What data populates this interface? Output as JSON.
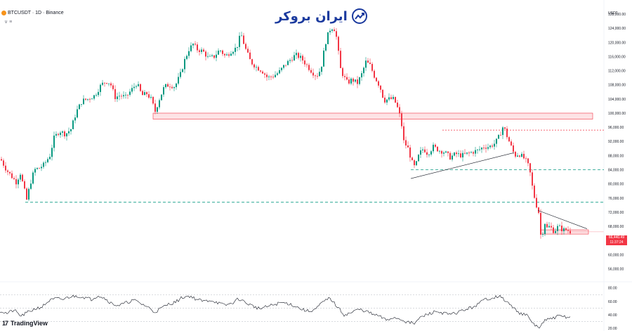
{
  "header": {
    "symbol": "BTCUSDT · 1D · Binance",
    "symbol_icon": "bitcoin-coin-icon",
    "indicator_row": "∨ ≡"
  },
  "logo": {
    "text": "ایران بروکر",
    "icon": "trend-up-chart-icon",
    "color": "#1b3a9e"
  },
  "footer": {
    "brand": "TradingView",
    "brand_icon": "tradingview-logo-icon"
  },
  "price_axis": {
    "unit": "USDT",
    "ticks": [
      "128,000.00",
      "124,000.00",
      "120,000.00",
      "116,000.00",
      "112,000.00",
      "108,000.00",
      "104,000.00",
      "100,000.00",
      "96,000.00",
      "92,000.00",
      "88,000.00",
      "84,000.00",
      "80,000.00",
      "76,000.00",
      "72,000.00",
      "68,000.00",
      "64,000.00",
      "60,000.00",
      "56,000.00"
    ],
    "current_price": "66,440.49",
    "countdown": "11:37:24"
  },
  "rsi_axis": {
    "ticks": [
      "80.00",
      "60.00",
      "40.00",
      "20.00"
    ]
  },
  "colors": {
    "up": "#089981",
    "down": "#f23645",
    "zone": "#f23645",
    "green_line": "#089981",
    "trend": "#131722"
  },
  "chart_data": [
    {
      "type": "candlestick",
      "title": "BTCUSDT · 1D · Binance",
      "ylim": [
        53500,
        130000
      ],
      "y_ticks": [
        128000,
        124000,
        120000,
        116000,
        112000,
        108000,
        104000,
        100000,
        96000,
        92000,
        88000,
        84000,
        80000,
        76000,
        72000,
        68000,
        64000,
        60000,
        56000
      ],
      "close_path": [
        [
          0,
          87000
        ],
        [
          8,
          84000
        ],
        [
          14,
          82500
        ],
        [
          22,
          80500
        ],
        [
          28,
          83000
        ],
        [
          34,
          78000
        ],
        [
          37,
          75500
        ],
        [
          42,
          80000
        ],
        [
          48,
          84000
        ],
        [
          55,
          84500
        ],
        [
          62,
          85500
        ],
        [
          70,
          88000
        ],
        [
          76,
          93000
        ],
        [
          84,
          95000
        ],
        [
          92,
          94000
        ],
        [
          100,
          95500
        ],
        [
          108,
          100500
        ],
        [
          116,
          103500
        ],
        [
          124,
          104000
        ],
        [
          134,
          105000
        ],
        [
          143,
          108000
        ],
        [
          150,
          109000
        ],
        [
          156,
          108500
        ],
        [
          163,
          104500
        ],
        [
          170,
          105000
        ],
        [
          178,
          104500
        ],
        [
          186,
          106500
        ],
        [
          194,
          108500
        ],
        [
          201,
          105000
        ],
        [
          208,
          105500
        ],
        [
          214,
          104000
        ],
        [
          220,
          100500
        ],
        [
          226,
          104000
        ],
        [
          233,
          107500
        ],
        [
          240,
          108000
        ],
        [
          248,
          107500
        ],
        [
          256,
          111000
        ],
        [
          262,
          115000
        ],
        [
          268,
          118000
        ],
        [
          274,
          119500
        ],
        [
          280,
          118000
        ],
        [
          288,
          117500
        ],
        [
          296,
          115500
        ],
        [
          304,
          116000
        ],
        [
          312,
          118000
        ],
        [
          320,
          116000
        ],
        [
          328,
          117500
        ],
        [
          336,
          118500
        ],
        [
          342,
          122500
        ],
        [
          348,
          118500
        ],
        [
          356,
          114500
        ],
        [
          364,
          113000
        ],
        [
          372,
          112000
        ],
        [
          380,
          110000
        ],
        [
          388,
          110500
        ],
        [
          396,
          111500
        ],
        [
          404,
          113500
        ],
        [
          412,
          115000
        ],
        [
          420,
          116500
        ],
        [
          428,
          115500
        ],
        [
          436,
          113500
        ],
        [
          444,
          111500
        ],
        [
          450,
          110500
        ],
        [
          456,
          112500
        ],
        [
          462,
          119500
        ],
        [
          468,
          123500
        ],
        [
          474,
          124500
        ],
        [
          478,
          121500
        ],
        [
          484,
          112500
        ],
        [
          488,
          110500
        ],
        [
          494,
          108500
        ],
        [
          500,
          109500
        ],
        [
          508,
          108500
        ],
        [
          514,
          111000
        ],
        [
          520,
          114500
        ],
        [
          526,
          113500
        ],
        [
          532,
          110500
        ],
        [
          540,
          107500
        ],
        [
          546,
          103500
        ],
        [
          552,
          104000
        ],
        [
          560,
          104000
        ],
        [
          566,
          101000
        ],
        [
          570,
          98000
        ],
        [
          574,
          92000
        ],
        [
          580,
          90000
        ],
        [
          586,
          86000
        ],
        [
          590,
          84500
        ],
        [
          596,
          88500
        ],
        [
          602,
          90000
        ],
        [
          608,
          88500
        ],
        [
          616,
          90500
        ],
        [
          624,
          89500
        ],
        [
          632,
          89000
        ],
        [
          640,
          87500
        ],
        [
          648,
          88500
        ],
        [
          656,
          88000
        ],
        [
          664,
          88500
        ],
        [
          672,
          89000
        ],
        [
          680,
          89500
        ],
        [
          688,
          90500
        ],
        [
          696,
          90500
        ],
        [
          704,
          91500
        ],
        [
          710,
          93500
        ],
        [
          716,
          96500
        ],
        [
          720,
          94000
        ],
        [
          726,
          91000
        ],
        [
          732,
          88000
        ],
        [
          738,
          88500
        ],
        [
          744,
          87500
        ],
        [
          750,
          86000
        ],
        [
          754,
          83000
        ],
        [
          758,
          78000
        ],
        [
          762,
          74500
        ],
        [
          766,
          72000
        ],
        [
          770,
          63500
        ],
        [
          774,
          69500
        ],
        [
          778,
          67500
        ],
        [
          782,
          68000
        ],
        [
          788,
          66500
        ],
        [
          794,
          68000
        ],
        [
          800,
          67000
        ],
        [
          806,
          67000
        ],
        [
          812,
          66440
        ]
      ],
      "horizontal_zones": [
        {
          "from": 100000,
          "to": 98300
        },
        {
          "from": 67000,
          "to": 65800
        }
      ],
      "support_lines": [
        95200,
        84000,
        74800
      ],
      "trendlines": [
        [
          [
            585,
            81500
          ],
          [
            732,
            88800
          ]
        ],
        [
          [
            766,
            72500
          ],
          [
            836,
            67300
          ]
        ]
      ],
      "last_price": 66440.49
    },
    {
      "type": "line",
      "name": "RSI",
      "ylim": [
        18,
        88
      ],
      "y_ticks": [
        80,
        60,
        40,
        20
      ],
      "levels": [
        70,
        50,
        30
      ],
      "values": [
        [
          0,
          46
        ],
        [
          10,
          42
        ],
        [
          20,
          47
        ],
        [
          30,
          38
        ],
        [
          40,
          44
        ],
        [
          50,
          49
        ],
        [
          60,
          52
        ],
        [
          70,
          61
        ],
        [
          80,
          64
        ],
        [
          90,
          63
        ],
        [
          100,
          67
        ],
        [
          110,
          68
        ],
        [
          120,
          66
        ],
        [
          130,
          63
        ],
        [
          140,
          69
        ],
        [
          150,
          64
        ],
        [
          160,
          56
        ],
        [
          170,
          54
        ],
        [
          180,
          58
        ],
        [
          190,
          62
        ],
        [
          200,
          57
        ],
        [
          210,
          52
        ],
        [
          220,
          44
        ],
        [
          230,
          50
        ],
        [
          240,
          56
        ],
        [
          250,
          59
        ],
        [
          260,
          66
        ],
        [
          270,
          68
        ],
        [
          280,
          63
        ],
        [
          290,
          60
        ],
        [
          300,
          62
        ],
        [
          310,
          58
        ],
        [
          320,
          54
        ],
        [
          330,
          57
        ],
        [
          340,
          64
        ],
        [
          350,
          58
        ],
        [
          360,
          53
        ],
        [
          370,
          49
        ],
        [
          380,
          52
        ],
        [
          390,
          55
        ],
        [
          400,
          58
        ],
        [
          410,
          57
        ],
        [
          420,
          53
        ],
        [
          430,
          48
        ],
        [
          440,
          45
        ],
        [
          450,
          49
        ],
        [
          460,
          59
        ],
        [
          470,
          65
        ],
        [
          480,
          52
        ],
        [
          490,
          40
        ],
        [
          500,
          43
        ],
        [
          510,
          48
        ],
        [
          520,
          46
        ],
        [
          530,
          41
        ],
        [
          540,
          38
        ],
        [
          550,
          32
        ],
        [
          560,
          36
        ],
        [
          570,
          34
        ],
        [
          580,
          29
        ],
        [
          590,
          27
        ],
        [
          600,
          37
        ],
        [
          610,
          41
        ],
        [
          620,
          45
        ],
        [
          630,
          43
        ],
        [
          640,
          40
        ],
        [
          650,
          43
        ],
        [
          660,
          47
        ],
        [
          670,
          50
        ],
        [
          680,
          55
        ],
        [
          690,
          63
        ],
        [
          700,
          65
        ],
        [
          710,
          68
        ],
        [
          720,
          61
        ],
        [
          730,
          51
        ],
        [
          740,
          43
        ],
        [
          750,
          39
        ],
        [
          760,
          26
        ],
        [
          768,
          21
        ],
        [
          776,
          31
        ],
        [
          786,
          35
        ],
        [
          796,
          38
        ],
        [
          806,
          37
        ],
        [
          812,
          36
        ]
      ]
    }
  ]
}
